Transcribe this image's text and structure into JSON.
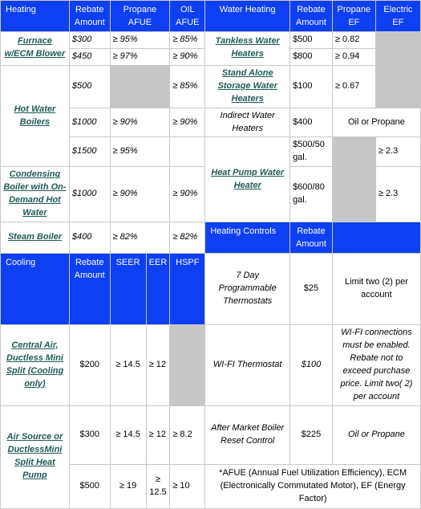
{
  "heating": {
    "headers": {
      "category": "Heating",
      "rebate": "Rebate Amount",
      "propane": "Propane AFUE",
      "oil": "OIL AFUE"
    },
    "furnace": {
      "label": "Furnace w/ECM Blower",
      "rows": [
        {
          "rebate": "$300",
          "propane": "≥ 95%",
          "oil": "≥ 85%"
        },
        {
          "rebate": "$450",
          "propane": "≥ 97%",
          "oil": "≥ 90%"
        }
      ]
    },
    "boilers": {
      "label": "Hot Water Boilers",
      "rows": [
        {
          "rebate": "$500",
          "propane": "",
          "oil": "≥ 85%"
        },
        {
          "rebate": "$1000",
          "propane": "≥ 90%",
          "oil": "≥ 90%"
        },
        {
          "rebate": "$1500",
          "propane": "≥ 95%",
          "oil": ""
        }
      ]
    },
    "condensing": {
      "label": "Condensing Boiler with On-Demand Hot Water",
      "rebate": "$1000",
      "propane": "≥ 90%",
      "oil": "≥ 90%"
    },
    "steam": {
      "label": "Steam Boiler",
      "rebate": "$400",
      "propane": "≥ 82%",
      "oil": "≥ 82%"
    }
  },
  "water_heating": {
    "headers": {
      "category": "Water Heating",
      "rebate": "Rebate Amount",
      "propane": "Propane EF",
      "electric": "Electric EF"
    },
    "tankless": {
      "label": "Tankless Water Heaters",
      "rows": [
        {
          "rebate": "$500",
          "propane": "≥ 0.82"
        },
        {
          "rebate": "$800",
          "propane": "≥ 0.94"
        }
      ]
    },
    "storage": {
      "label": "Stand Alone Storage Water Heaters",
      "rebate": "$100",
      "propane": "≥ 0.67"
    },
    "indirect": {
      "label": "Indirect Water Heaters",
      "rebate": "$400",
      "fuel": "Oil or Propane"
    },
    "heat_pump": {
      "label": "Heat Pump Water Heater",
      "rows": [
        {
          "rebate": "$500/50 gal.",
          "electric": "≥ 2.3"
        },
        {
          "rebate": "$600/80 gal.",
          "electric": "≥ 2.3"
        }
      ]
    }
  },
  "heating_controls": {
    "headers": {
      "category": "Heating Controls",
      "rebate": "Rebate Amount"
    },
    "rows": [
      {
        "label": "7 Day Programmable Thermostats",
        "rebate": "$25",
        "note": "Limit two (2) per account"
      },
      {
        "label": "WI-FI Thermostat",
        "rebate": "$100",
        "note": "WI-FI connections must be enabled. Rebate not to exceed purchase price. Limit two( 2) per account"
      },
      {
        "label": "After Market Boiler Reset Control",
        "rebate": "$225",
        "note": "Oil or Propane"
      }
    ]
  },
  "cooling": {
    "headers": {
      "category": "Cooling",
      "rebate": "Rebate Amount",
      "seer": "SEER",
      "eer": "EER",
      "hspf": "HSPF"
    },
    "central_air": {
      "label": "Central Air, Ductless Mini Split (Cooling only)",
      "rebate": "$200",
      "seer": "≥ 14.5",
      "eer": "≥ 12",
      "hspf": ""
    },
    "air_source": {
      "label": "Air Source or DuctlessMini Split Heat Pump",
      "rows": [
        {
          "rebate": "$300",
          "seer": "≥ 14.5",
          "eer": "≥ 12",
          "hspf": "≥ 8.2"
        },
        {
          "rebate": "$500",
          "seer": "≥ 19",
          "eer": "≥ 12.5",
          "hspf": "≥ 10"
        }
      ]
    }
  },
  "footnote": "*AFUE (Annual Fuel Utilization Efficiency), ECM (Electronically Commutated Motor), EF (Energy Factor)",
  "colors": {
    "header_bg": "#0e3ff2",
    "header_text": "#ffffff",
    "link": "#1f5b56",
    "grey_cell": "#c7c7c7",
    "grid": "#c8c8c8"
  }
}
